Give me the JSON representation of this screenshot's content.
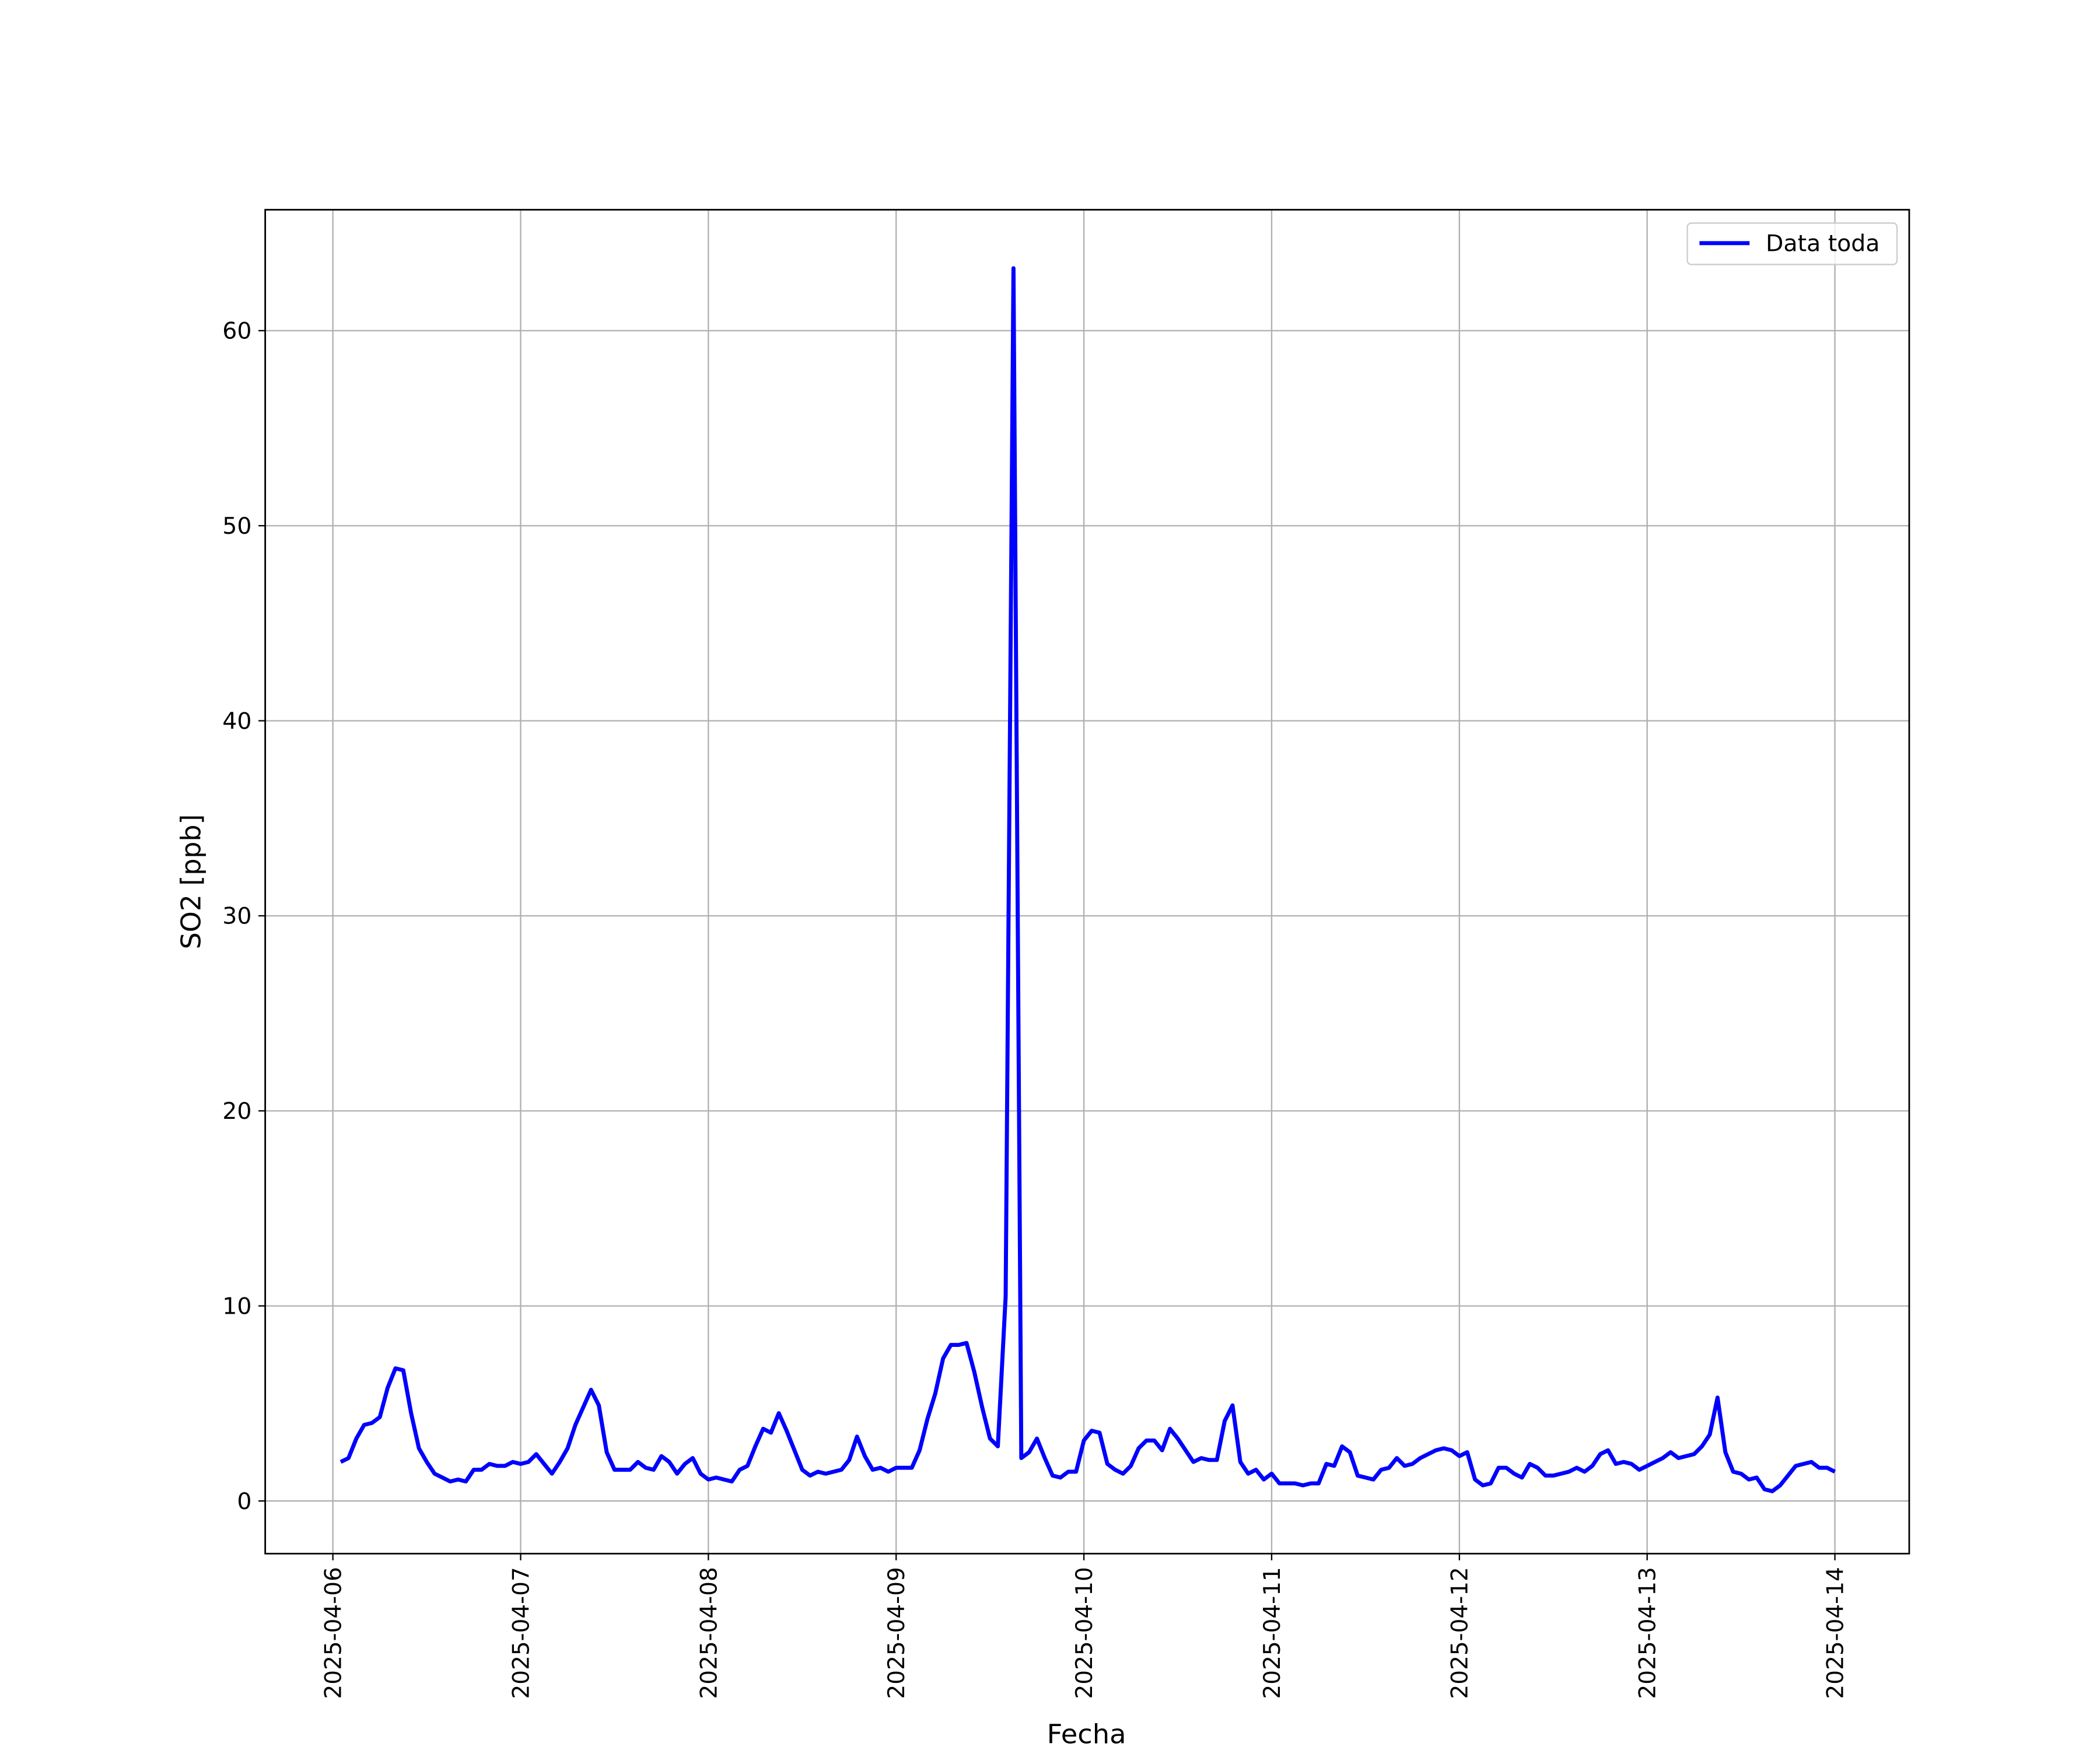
{
  "chart_data": {
    "type": "line",
    "x_label": "Fecha",
    "y_label": "SO2 [ppb]",
    "legend": "upper right",
    "grid": true,
    "xlim": [
      "2025-04-05T15:21",
      "2025-04-14T09:30"
    ],
    "xticks": [
      {
        "value": "2025-04-06T00:00",
        "label": "2025-04-06"
      },
      {
        "value": "2025-04-07T00:00",
        "label": "2025-04-07"
      },
      {
        "value": "2025-04-08T00:00",
        "label": "2025-04-08"
      },
      {
        "value": "2025-04-09T00:00",
        "label": "2025-04-09"
      },
      {
        "value": "2025-04-10T00:00",
        "label": "2025-04-10"
      },
      {
        "value": "2025-04-11T00:00",
        "label": "2025-04-11"
      },
      {
        "value": "2025-04-12T00:00",
        "label": "2025-04-12"
      },
      {
        "value": "2025-04-13T00:00",
        "label": "2025-04-13"
      },
      {
        "value": "2025-04-14T00:00",
        "label": "2025-04-14"
      }
    ],
    "ylim": [
      -2.7,
      66.2
    ],
    "yticks": [
      0,
      10,
      20,
      30,
      40,
      50,
      60
    ],
    "x": [
      "2025-04-06T01:00",
      "2025-04-06T02:00",
      "2025-04-06T03:00",
      "2025-04-06T04:00",
      "2025-04-06T05:00",
      "2025-04-06T06:00",
      "2025-04-06T07:00",
      "2025-04-06T08:00",
      "2025-04-06T09:00",
      "2025-04-06T10:00",
      "2025-04-06T11:00",
      "2025-04-06T12:00",
      "2025-04-06T13:00",
      "2025-04-06T14:00",
      "2025-04-06T15:00",
      "2025-04-06T16:00",
      "2025-04-06T17:00",
      "2025-04-06T18:00",
      "2025-04-06T19:00",
      "2025-04-06T20:00",
      "2025-04-06T21:00",
      "2025-04-06T22:00",
      "2025-04-06T23:00",
      "2025-04-07T00:00",
      "2025-04-07T01:00",
      "2025-04-07T02:00",
      "2025-04-07T03:00",
      "2025-04-07T04:00",
      "2025-04-07T05:00",
      "2025-04-07T06:00",
      "2025-04-07T07:00",
      "2025-04-07T08:00",
      "2025-04-07T09:00",
      "2025-04-07T10:00",
      "2025-04-07T11:00",
      "2025-04-07T12:00",
      "2025-04-07T13:00",
      "2025-04-07T14:00",
      "2025-04-07T15:00",
      "2025-04-07T16:00",
      "2025-04-07T17:00",
      "2025-04-07T18:00",
      "2025-04-07T19:00",
      "2025-04-07T20:00",
      "2025-04-07T21:00",
      "2025-04-07T22:00",
      "2025-04-07T23:00",
      "2025-04-08T00:00",
      "2025-04-08T01:00",
      "2025-04-08T02:00",
      "2025-04-08T03:00",
      "2025-04-08T04:00",
      "2025-04-08T05:00",
      "2025-04-08T06:00",
      "2025-04-08T07:00",
      "2025-04-08T08:00",
      "2025-04-08T09:00",
      "2025-04-08T10:00",
      "2025-04-08T11:00",
      "2025-04-08T12:00",
      "2025-04-08T13:00",
      "2025-04-08T14:00",
      "2025-04-08T15:00",
      "2025-04-08T16:00",
      "2025-04-08T17:00",
      "2025-04-08T18:00",
      "2025-04-08T19:00",
      "2025-04-08T20:00",
      "2025-04-08T21:00",
      "2025-04-08T22:00",
      "2025-04-08T23:00",
      "2025-04-09T00:00",
      "2025-04-09T01:00",
      "2025-04-09T02:00",
      "2025-04-09T03:00",
      "2025-04-09T04:00",
      "2025-04-09T05:00",
      "2025-04-09T06:00",
      "2025-04-09T07:00",
      "2025-04-09T08:00",
      "2025-04-09T09:00",
      "2025-04-09T10:00",
      "2025-04-09T11:00",
      "2025-04-09T12:00",
      "2025-04-09T13:00",
      "2025-04-09T14:00",
      "2025-04-09T15:00",
      "2025-04-09T16:00",
      "2025-04-09T17:00",
      "2025-04-09T18:00",
      "2025-04-09T19:00",
      "2025-04-09T20:00",
      "2025-04-09T21:00",
      "2025-04-09T22:00",
      "2025-04-09T23:00",
      "2025-04-10T00:00",
      "2025-04-10T01:00",
      "2025-04-10T02:00",
      "2025-04-10T03:00",
      "2025-04-10T04:00",
      "2025-04-10T05:00",
      "2025-04-10T06:00",
      "2025-04-10T07:00",
      "2025-04-10T08:00",
      "2025-04-10T09:00",
      "2025-04-10T10:00",
      "2025-04-10T11:00",
      "2025-04-10T12:00",
      "2025-04-10T13:00",
      "2025-04-10T14:00",
      "2025-04-10T15:00",
      "2025-04-10T16:00",
      "2025-04-10T17:00",
      "2025-04-10T18:00",
      "2025-04-10T19:00",
      "2025-04-10T20:00",
      "2025-04-10T21:00",
      "2025-04-10T22:00",
      "2025-04-10T23:00",
      "2025-04-11T00:00",
      "2025-04-11T01:00",
      "2025-04-11T02:00",
      "2025-04-11T03:00",
      "2025-04-11T04:00",
      "2025-04-11T05:00",
      "2025-04-11T06:00",
      "2025-04-11T07:00",
      "2025-04-11T08:00",
      "2025-04-11T09:00",
      "2025-04-11T10:00",
      "2025-04-11T11:00",
      "2025-04-11T12:00",
      "2025-04-11T13:00",
      "2025-04-11T14:00",
      "2025-04-11T15:00",
      "2025-04-11T16:00",
      "2025-04-11T17:00",
      "2025-04-11T18:00",
      "2025-04-11T19:00",
      "2025-04-11T20:00",
      "2025-04-11T21:00",
      "2025-04-11T22:00",
      "2025-04-11T23:00",
      "2025-04-12T00:00",
      "2025-04-12T01:00",
      "2025-04-12T02:00",
      "2025-04-12T03:00",
      "2025-04-12T04:00",
      "2025-04-12T05:00",
      "2025-04-12T06:00",
      "2025-04-12T07:00",
      "2025-04-12T08:00",
      "2025-04-12T09:00",
      "2025-04-12T10:00",
      "2025-04-12T11:00",
      "2025-04-12T12:00",
      "2025-04-12T13:00",
      "2025-04-12T14:00",
      "2025-04-12T15:00",
      "2025-04-12T16:00",
      "2025-04-12T17:00",
      "2025-04-12T18:00",
      "2025-04-12T19:00",
      "2025-04-12T20:00",
      "2025-04-12T21:00",
      "2025-04-12T22:00",
      "2025-04-12T23:00",
      "2025-04-13T00:00",
      "2025-04-13T01:00",
      "2025-04-13T02:00",
      "2025-04-13T03:00",
      "2025-04-13T04:00",
      "2025-04-13T05:00",
      "2025-04-13T06:00",
      "2025-04-13T07:00",
      "2025-04-13T08:00",
      "2025-04-13T09:00",
      "2025-04-13T10:00",
      "2025-04-13T11:00",
      "2025-04-13T12:00",
      "2025-04-13T13:00",
      "2025-04-13T14:00",
      "2025-04-13T15:00",
      "2025-04-13T16:00",
      "2025-04-13T17:00",
      "2025-04-13T18:00",
      "2025-04-13T19:00",
      "2025-04-13T20:00",
      "2025-04-13T21:00",
      "2025-04-13T22:00",
      "2025-04-13T23:00",
      "2025-04-14T00:00"
    ],
    "series": [
      {
        "name": "Data toda",
        "color": "#0000ff",
        "values": [
          2.0,
          2.2,
          3.2,
          3.9,
          4.0,
          4.3,
          5.8,
          6.8,
          6.7,
          4.5,
          2.7,
          2.0,
          1.4,
          1.2,
          1.0,
          1.1,
          1.0,
          1.6,
          1.6,
          1.9,
          1.8,
          1.8,
          2.0,
          1.9,
          2.0,
          2.4,
          1.9,
          1.4,
          2.0,
          2.7,
          3.9,
          4.8,
          5.7,
          4.9,
          2.5,
          1.6,
          1.6,
          1.6,
          2.0,
          1.7,
          1.6,
          2.3,
          2.0,
          1.4,
          1.9,
          2.2,
          1.4,
          1.1,
          1.2,
          1.1,
          1.0,
          1.6,
          1.8,
          2.8,
          3.7,
          3.5,
          4.5,
          3.6,
          2.6,
          1.6,
          1.3,
          1.5,
          1.4,
          1.5,
          1.6,
          2.1,
          3.3,
          2.3,
          1.6,
          1.7,
          1.5,
          1.7,
          1.7,
          1.7,
          2.6,
          4.2,
          5.5,
          7.3,
          8.0,
          8.0,
          8.1,
          6.6,
          4.8,
          3.2,
          2.8,
          10.5,
          63.2,
          2.2,
          2.5,
          3.2,
          2.2,
          1.3,
          1.2,
          1.5,
          1.5,
          3.1,
          3.6,
          3.5,
          1.9,
          1.6,
          1.4,
          1.8,
          2.7,
          3.1,
          3.1,
          2.6,
          3.7,
          3.2,
          2.6,
          2.0,
          2.2,
          2.1,
          2.1,
          4.1,
          4.9,
          2.0,
          1.4,
          1.6,
          1.1,
          1.4,
          0.9,
          0.9,
          0.9,
          0.8,
          0.9,
          0.9,
          1.9,
          1.8,
          2.8,
          2.5,
          1.3,
          1.2,
          1.1,
          1.6,
          1.7,
          2.2,
          1.8,
          1.9,
          2.2,
          2.4,
          2.6,
          2.7,
          2.6,
          2.3,
          2.5,
          1.1,
          0.8,
          0.9,
          1.7,
          1.7,
          1.4,
          1.2,
          1.9,
          1.7,
          1.3,
          1.3,
          1.4,
          1.5,
          1.7,
          1.5,
          1.8,
          2.4,
          2.6,
          1.9,
          2.0,
          1.9,
          1.6,
          1.8,
          2.0,
          2.2,
          2.5,
          2.2,
          2.3,
          2.4,
          2.8,
          3.4,
          5.3,
          2.5,
          1.5,
          1.4,
          1.1,
          1.2,
          0.6,
          0.5,
          0.8,
          1.3,
          1.8,
          1.9,
          2.0,
          1.7,
          1.7,
          1.5
        ]
      }
    ]
  }
}
